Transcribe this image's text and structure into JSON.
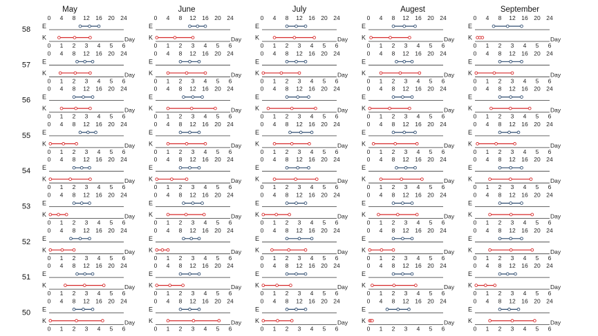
{
  "chart_data": {
    "type": "range",
    "months": [
      "May",
      "June",
      "July",
      "Augest",
      "September"
    ],
    "weeks": [
      "58",
      "57",
      "56",
      "55",
      "54",
      "53",
      "52",
      "51",
      "50"
    ],
    "row_labels": [
      "E",
      "K"
    ],
    "e_axis_ticks": [
      "0",
      "4",
      "8",
      "12",
      "16",
      "20",
      "24"
    ],
    "e_axis_range": [
      0,
      24
    ],
    "k_axis_ticks": [
      "0",
      "1",
      "2",
      "3",
      "4",
      "5",
      "6"
    ],
    "k_axis_range": [
      0,
      6
    ],
    "k_axis_label": "Day",
    "colors": {
      "E": "#2c4a6e",
      "K": "#d62728"
    },
    "ranges": {
      "E": [
        [
          [
            10,
            16
          ],
          [
            11,
            16
          ],
          [
            8,
            14
          ],
          [
            8,
            15
          ],
          [
            6,
            15
          ]
        ],
        [
          [
            9,
            14
          ],
          [
            8,
            14
          ],
          [
            8,
            14
          ],
          [
            9,
            14
          ],
          [
            8,
            15
          ]
        ],
        [
          [
            8,
            14
          ],
          [
            9,
            15
          ],
          [
            8,
            15
          ],
          [
            8,
            14
          ],
          [
            8,
            15
          ]
        ],
        [
          [
            10,
            15
          ],
          [
            8,
            14
          ],
          [
            9,
            16
          ],
          [
            8,
            15
          ],
          [
            8,
            14
          ]
        ],
        [
          [
            8,
            13
          ],
          [
            8,
            14
          ],
          [
            8,
            15
          ],
          [
            9,
            15
          ],
          [
            8,
            15
          ]
        ],
        [
          [
            8,
            13
          ],
          [
            9,
            15
          ],
          [
            8,
            14
          ],
          [
            8,
            14
          ],
          [
            8,
            15
          ]
        ],
        [
          [
            7,
            13
          ],
          [
            9,
            14
          ],
          [
            8,
            16
          ],
          [
            8,
            14
          ],
          [
            8,
            15
          ]
        ],
        [
          [
            9,
            14
          ],
          [
            8,
            14
          ],
          [
            8,
            14
          ],
          [
            8,
            14
          ],
          [
            8,
            13
          ]
        ],
        [
          [
            8,
            14
          ],
          [
            8,
            14
          ],
          [
            8,
            14
          ],
          [
            6,
            13
          ],
          [
            8,
            14
          ]
        ]
      ],
      "K": [
        [
          [
            0.8,
            3.3
          ],
          [
            0.1,
            3
          ],
          [
            1,
            4.2
          ],
          [
            0.2,
            3.3
          ],
          [
            0.2,
            0.6
          ]
        ],
        [
          [
            0.9,
            3.3
          ],
          [
            1,
            4
          ],
          [
            0.1,
            3
          ],
          [
            1,
            4.1
          ],
          [
            0.1,
            3
          ]
        ],
        [
          [
            1,
            3.3
          ],
          [
            1,
            4.8
          ],
          [
            0.5,
            4.3
          ],
          [
            0.1,
            3.3
          ],
          [
            1.3,
            4.4
          ]
        ],
        [
          [
            0.1,
            2.2
          ],
          [
            1,
            4
          ],
          [
            1,
            3.8
          ],
          [
            0.4,
            3.9
          ],
          [
            0.2,
            3.2
          ]
        ],
        [
          [
            0.1,
            3.3
          ],
          [
            0.1,
            2.5
          ],
          [
            1,
            4.4
          ],
          [
            1,
            4.3
          ],
          [
            1.2,
            4.5
          ]
        ],
        [
          [
            0.1,
            1.4
          ],
          [
            1,
            3.9
          ],
          [
            0.1,
            2.2
          ],
          [
            0.8,
            3.9
          ],
          [
            1.2,
            4.6
          ]
        ],
        [
          [
            0.1,
            2
          ],
          [
            0.1,
            1
          ],
          [
            0.8,
            3.5
          ],
          [
            0.1,
            2
          ],
          [
            1.2,
            4.6
          ]
        ],
        [
          [
            1.3,
            4.4
          ],
          [
            0.1,
            2.2
          ],
          [
            0.1,
            2.3
          ],
          [
            0.3,
            3.8
          ],
          [
            0.1,
            1.6
          ]
        ],
        [
          [
            0.1,
            4.3
          ],
          [
            1,
            5.1
          ],
          [
            0.1,
            2.4
          ],
          [
            0.1,
            0.3
          ],
          [
            1.2,
            4.8
          ]
        ]
      ]
    }
  }
}
